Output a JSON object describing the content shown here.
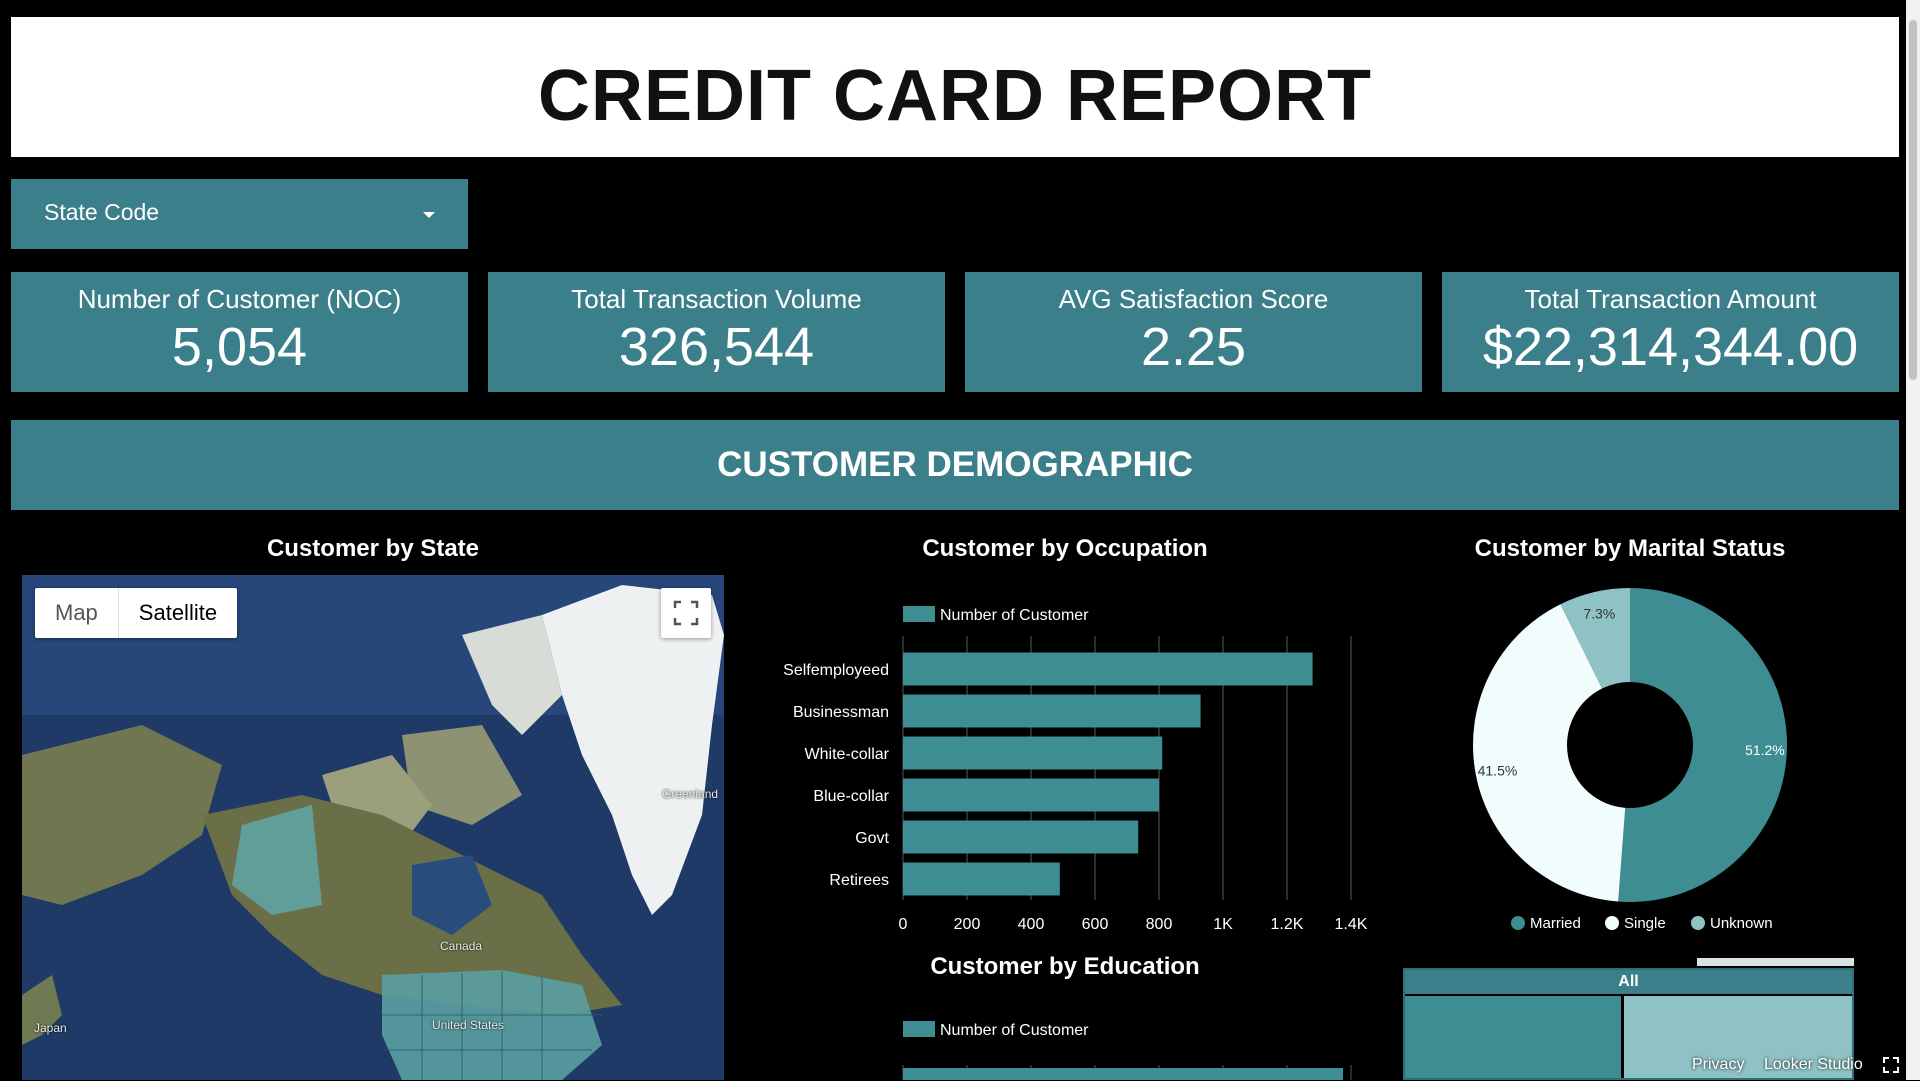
{
  "header": {
    "title": "CREDIT CARD REPORT"
  },
  "filter": {
    "label": "State Code",
    "icon": "dropdown-caret-icon"
  },
  "kpis": [
    {
      "label": "Number of Customer (NOC)",
      "value": "5,054"
    },
    {
      "label": "Total Transaction Volume",
      "value": "326,544"
    },
    {
      "label": "AVG Satisfaction Score",
      "value": "2.25"
    },
    {
      "label": "Total Transaction Amount",
      "value": "$22,314,344.00"
    }
  ],
  "section": {
    "title": "CUSTOMER DEMOGRAPHIC"
  },
  "map": {
    "title": "Customer by State",
    "toggle": {
      "map_label": "Map",
      "satellite_label": "Satellite",
      "selected": "Satellite"
    },
    "labels": {
      "greenland": "Greenland",
      "canada": "Canada",
      "united_states": "United States",
      "japan": "Japan"
    },
    "icons": {
      "fullscreen": "fullscreen-icon"
    }
  },
  "occupation_chart": {
    "title": "Customer by Occupation",
    "legend": "Number of Customer",
    "xticks": [
      "0",
      "200",
      "400",
      "600",
      "800",
      "1K",
      "1.2K",
      "1.4K"
    ]
  },
  "marital_chart": {
    "title": "Customer by Marital Status",
    "legend": [
      "Married",
      "Single",
      "Unknown"
    ],
    "slice_labels": [
      "51.2%",
      "41.5%",
      "7.3%"
    ]
  },
  "education_chart": {
    "title": "Customer by Education",
    "legend": "Number of Customer"
  },
  "treemap": {
    "root_label": "All"
  },
  "footer": {
    "privacy": "Privacy",
    "brand": "Looker Studio"
  },
  "colors": {
    "accent": "#3a7f89",
    "bar": "#3e8d93",
    "single": "#f1fcfc",
    "unknown": "#8ec2c4",
    "treemap_light": "#8ec2c4"
  },
  "chart_data": [
    {
      "type": "bar",
      "title": "Customer by Occupation",
      "orientation": "horizontal",
      "categories": [
        "Selfemployeed",
        "Businessman",
        "White-collar",
        "Blue-collar",
        "Govt",
        "Retirees"
      ],
      "series": [
        {
          "name": "Number of Customer",
          "values": [
            1280,
            930,
            810,
            800,
            735,
            490
          ]
        }
      ],
      "xlim": [
        0,
        1400
      ],
      "grid": true,
      "legend": "top-left"
    },
    {
      "type": "pie",
      "title": "Customer by Marital Status",
      "categories": [
        "Married",
        "Single",
        "Unknown"
      ],
      "values": [
        51.2,
        41.5,
        7.3
      ],
      "legend": "bottom"
    }
  ]
}
